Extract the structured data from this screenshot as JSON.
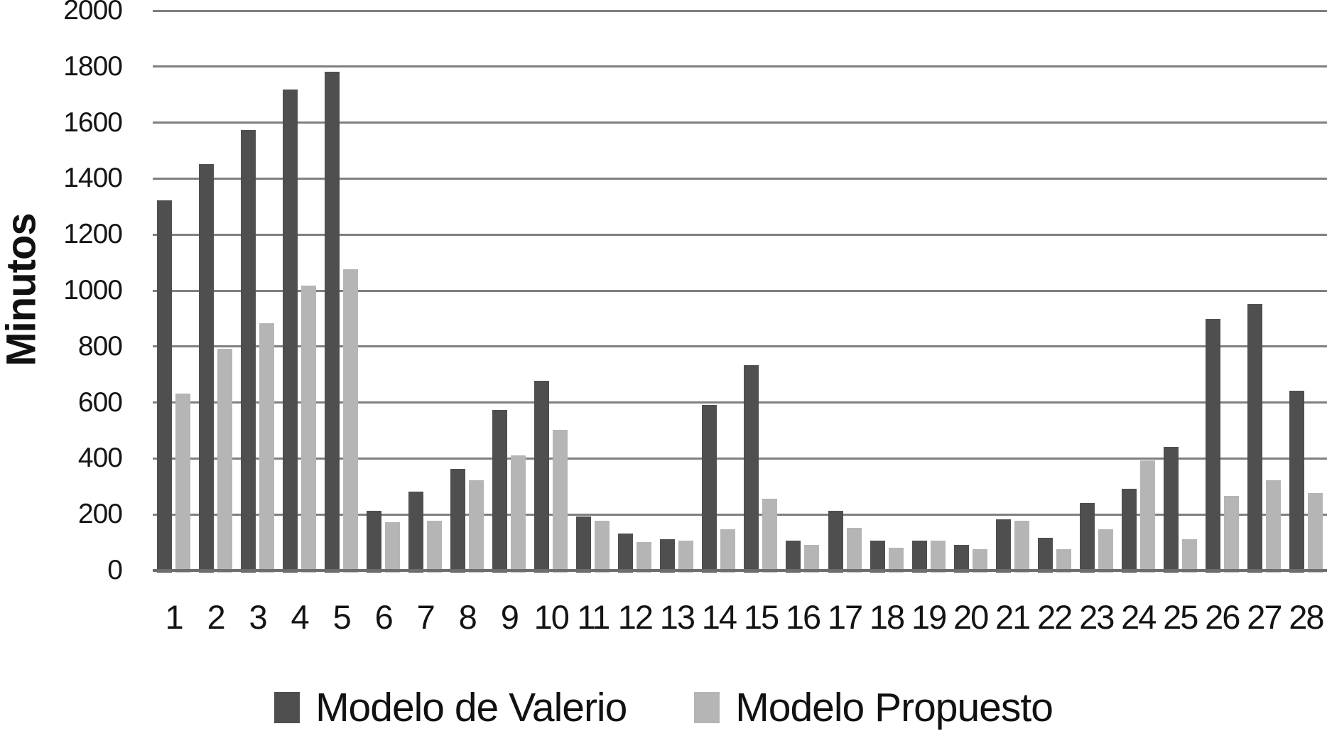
{
  "chart_data": {
    "type": "bar",
    "title": "",
    "xlabel": "",
    "ylabel": "Minutos",
    "ylim": [
      0,
      2000
    ],
    "ytick_step": 200,
    "yticks": [
      0,
      200,
      400,
      600,
      800,
      1000,
      1200,
      1400,
      1600,
      1800,
      2000
    ],
    "categories": [
      "1",
      "2",
      "3",
      "4",
      "5",
      "6",
      "7",
      "8",
      "9",
      "10",
      "11",
      "12",
      "13",
      "14",
      "15",
      "16",
      "17",
      "18",
      "19",
      "20",
      "21",
      "22",
      "23",
      "24",
      "25",
      "26",
      "27",
      "28"
    ],
    "series": [
      {
        "name": "Modelo de Valerio",
        "color": "#4f4f4f",
        "values": [
          1330,
          1460,
          1580,
          1725,
          1790,
          220,
          290,
          370,
          580,
          685,
          200,
          140,
          120,
          600,
          740,
          115,
          220,
          115,
          115,
          100,
          190,
          125,
          250,
          300,
          450,
          905,
          960,
          650
        ]
      },
      {
        "name": "Modelo Propuesto",
        "color": "#b5b5b5",
        "values": [
          640,
          800,
          890,
          1025,
          1085,
          180,
          185,
          330,
          420,
          510,
          185,
          110,
          115,
          155,
          265,
          100,
          160,
          90,
          115,
          85,
          185,
          85,
          155,
          400,
          120,
          275,
          330,
          285
        ]
      }
    ],
    "grid": "horizontal",
    "legend_position": "bottom"
  },
  "colors": {
    "background": "#ffffff",
    "gridline": "#7f7f7f",
    "axis_line": "#6d6d6d",
    "text": "#1a1a1a"
  }
}
